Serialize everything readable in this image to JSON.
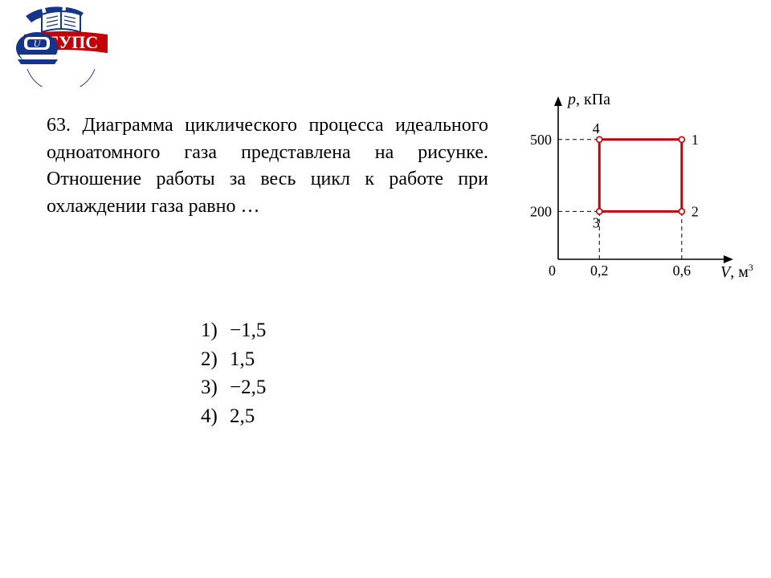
{
  "logo": {
    "text_top": "РГУПС",
    "letter": "U",
    "banner_color": "#c20008",
    "gear_color": "#15358a",
    "train_color": "#15358a",
    "book_white": "#ffffff"
  },
  "problem": {
    "number_label": "63.",
    "text": "Диаграмма циклического процесса идеального одноатомного газа представлена на рисунке. Отношение работы за весь цикл к работе при охлаждении газа равно …"
  },
  "answers": [
    {
      "n": "1)",
      "v": "−1,5"
    },
    {
      "n": "2)",
      "v": " 1,5"
    },
    {
      "n": "3)",
      "v": "−2,5"
    },
    {
      "n": "4)",
      "v": " 2,5"
    }
  ],
  "chart": {
    "type": "line-cycle",
    "x_axis_label_italic": "V",
    "x_axis_label_unit": ", м",
    "x_axis_label_sup": "3",
    "y_axis_label_italic": "p",
    "y_axis_label_rest": ", кПа",
    "origin_label": "0",
    "x_ticks": [
      {
        "val": 0.2,
        "label": "0,2"
      },
      {
        "val": 0.6,
        "label": "0,6"
      }
    ],
    "y_ticks": [
      {
        "val": 200,
        "label": "200"
      },
      {
        "val": 500,
        "label": "500"
      }
    ],
    "xlim": [
      0,
      0.78
    ],
    "ylim": [
      0,
      620
    ],
    "points": [
      {
        "id": "1",
        "x": 0.6,
        "y": 500
      },
      {
        "id": "2",
        "x": 0.6,
        "y": 200
      },
      {
        "id": "3",
        "x": 0.2,
        "y": 200
      },
      {
        "id": "4",
        "x": 0.2,
        "y": 500
      }
    ],
    "cycle_color": "#c20008",
    "cycle_stroke_width": 3,
    "dash_color": "#000000",
    "dash_pattern": "5,4",
    "axis_color": "#000000",
    "marker_fill": "#ffffff",
    "marker_stroke": "#c20008",
    "marker_radius": 3.5,
    "label_fontsize": 18
  }
}
